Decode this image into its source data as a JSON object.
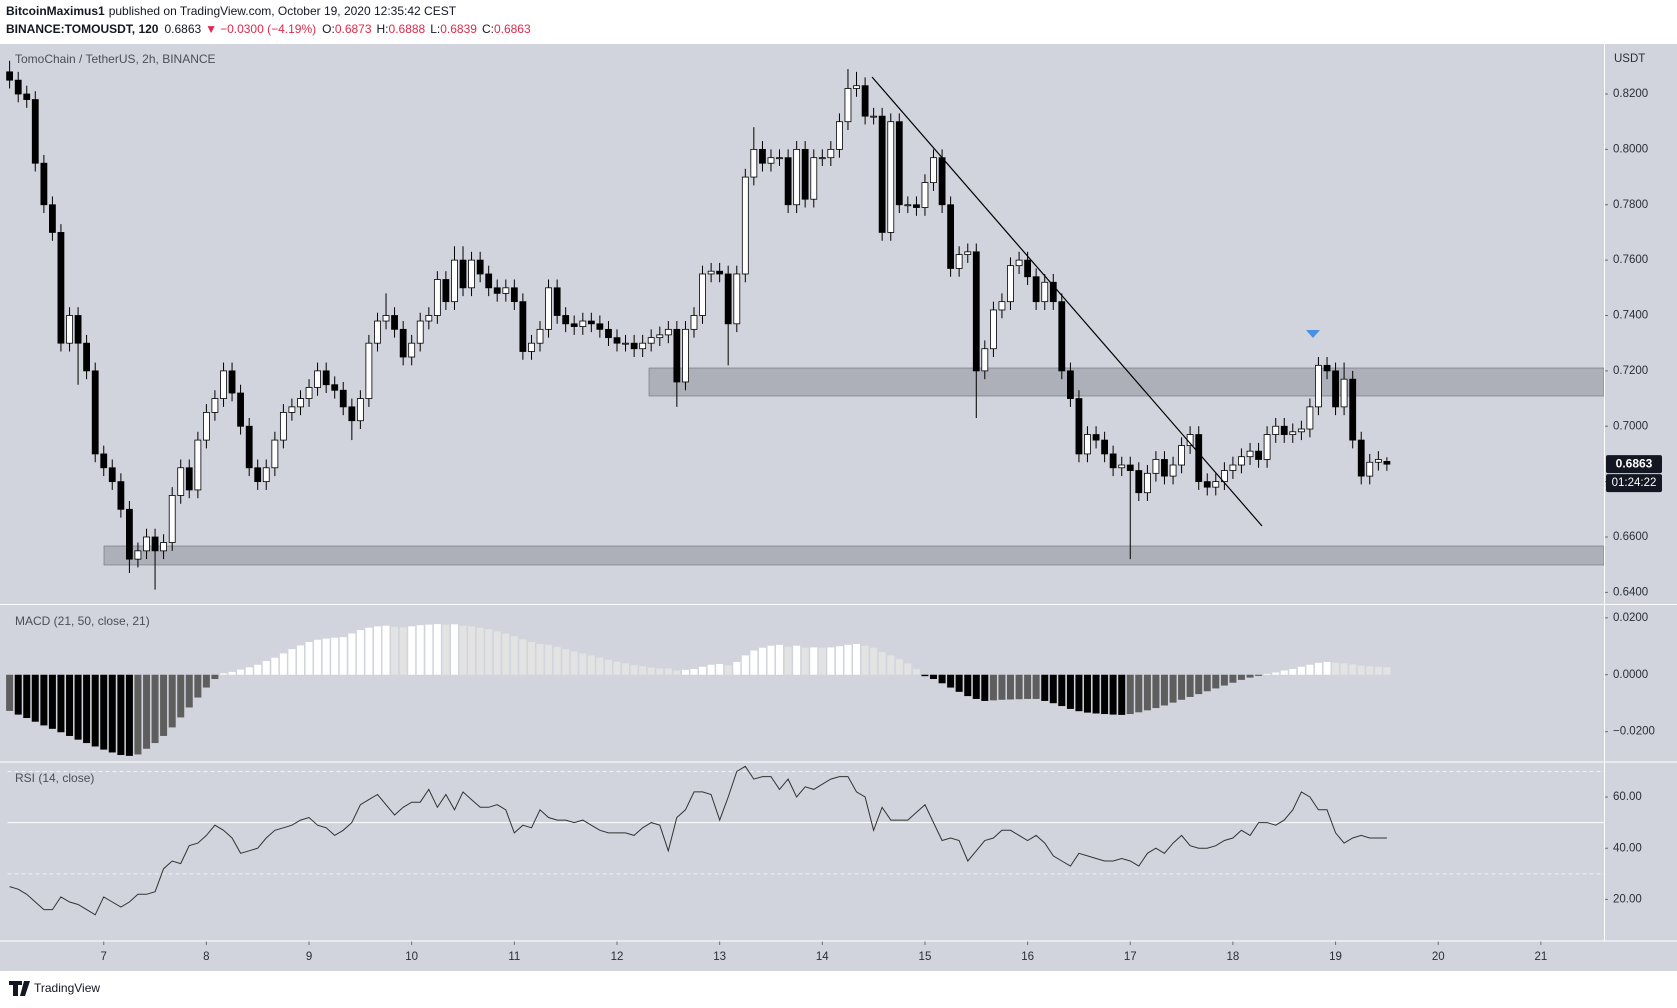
{
  "header": {
    "publisher": "BitcoinMaximus1",
    "published": "published on TradingView.com, October 19, 2020 12:35:42 CEST",
    "symbol": "BINANCE:TOMOUSDT, 120",
    "change_arrow": "▼",
    "change": "−0.0300 (−4.19%)",
    "o_label": "O:",
    "h_label": "H:",
    "l_label": "L:",
    "c_label": "C:"
  },
  "footer": {
    "brand": "TradingView"
  },
  "chart_data": {
    "type": "candlestick",
    "title": "TomoChain / TetherUS, 2h, BINANCE",
    "y_unit": "USDT",
    "countdown": "01:24:22",
    "up_color": "#ffffff",
    "down_color": "#000000",
    "xlim": [
      6.0625,
      21.615
    ],
    "xticks": [
      7,
      8,
      9,
      10,
      11,
      12,
      13,
      14,
      15,
      16,
      17,
      18,
      19,
      20,
      21
    ],
    "ylim": [
      0.6358,
      0.8377
    ],
    "yticks": [
      {
        "value": 0.64,
        "label": "0.6400"
      },
      {
        "value": 0.66,
        "label": "0.6600"
      },
      {
        "value": 0.68,
        "label": "0.6800"
      },
      {
        "value": 0.7,
        "label": "0.7000"
      },
      {
        "value": 0.72,
        "label": "0.7200"
      },
      {
        "value": 0.74,
        "label": "0.7400"
      },
      {
        "value": 0.76,
        "label": "0.7600"
      },
      {
        "value": 0.78,
        "label": "0.7800"
      },
      {
        "value": 0.8,
        "label": "0.8000"
      },
      {
        "value": 0.82,
        "label": "0.8200"
      }
    ],
    "x": [
      6.083,
      6.167,
      6.25,
      6.333,
      6.417,
      6.5,
      6.583,
      6.667,
      6.75,
      6.833,
      6.917,
      7,
      7.083,
      7.167,
      7.25,
      7.333,
      7.417,
      7.5,
      7.583,
      7.667,
      7.75,
      7.833,
      7.917,
      8,
      8.083,
      8.167,
      8.25,
      8.333,
      8.417,
      8.5,
      8.583,
      8.667,
      8.75,
      8.833,
      8.917,
      9,
      9.083,
      9.167,
      9.25,
      9.333,
      9.417,
      9.5,
      9.583,
      9.667,
      9.75,
      9.833,
      9.917,
      10,
      10.083,
      10.167,
      10.25,
      10.333,
      10.417,
      10.5,
      10.583,
      10.667,
      10.75,
      10.833,
      10.917,
      11,
      11.083,
      11.167,
      11.25,
      11.333,
      11.417,
      11.5,
      11.583,
      11.667,
      11.75,
      11.833,
      11.917,
      12,
      12.083,
      12.167,
      12.25,
      12.333,
      12.417,
      12.5,
      12.583,
      12.667,
      12.75,
      12.833,
      12.917,
      13,
      13.083,
      13.167,
      13.25,
      13.333,
      13.417,
      13.5,
      13.583,
      13.667,
      13.75,
      13.833,
      13.917,
      14,
      14.083,
      14.167,
      14.25,
      14.333,
      14.417,
      14.5,
      14.583,
      14.667,
      14.75,
      14.833,
      14.917,
      15,
      15.083,
      15.167,
      15.25,
      15.333,
      15.417,
      15.5,
      15.583,
      15.667,
      15.75,
      15.833,
      15.917,
      16,
      16.083,
      16.167,
      16.25,
      16.333,
      16.417,
      16.5,
      16.583,
      16.667,
      16.75,
      16.833,
      16.917,
      17,
      17.083,
      17.167,
      17.25,
      17.333,
      17.417,
      17.5,
      17.583,
      17.667,
      17.75,
      17.833,
      17.917,
      18,
      18.083,
      18.167,
      18.25,
      18.333,
      18.417,
      18.5,
      18.583,
      18.667,
      18.75,
      18.833,
      18.917,
      19,
      19.083,
      19.167,
      19.25,
      19.333,
      19.417,
      19.5
    ],
    "open": [
      0.828,
      0.825,
      0.82,
      0.818,
      0.795,
      0.78,
      0.77,
      0.73,
      0.74,
      0.73,
      0.72,
      0.69,
      0.685,
      0.68,
      0.67,
      0.652,
      0.655,
      0.66,
      0.655,
      0.658,
      0.675,
      0.685,
      0.677,
      0.695,
      0.705,
      0.71,
      0.72,
      0.712,
      0.7,
      0.685,
      0.68,
      0.685,
      0.695,
      0.705,
      0.707,
      0.71,
      0.714,
      0.72,
      0.715,
      0.713,
      0.707,
      0.702,
      0.71,
      0.73,
      0.738,
      0.74,
      0.735,
      0.725,
      0.73,
      0.738,
      0.74,
      0.753,
      0.745,
      0.76,
      0.75,
      0.76,
      0.755,
      0.75,
      0.748,
      0.75,
      0.745,
      0.727,
      0.73,
      0.735,
      0.75,
      0.74,
      0.737,
      0.736,
      0.738,
      0.737,
      0.735,
      0.732,
      0.73,
      0.73,
      0.728,
      0.73,
      0.732,
      0.733,
      0.735,
      0.716,
      0.735,
      0.74,
      0.755,
      0.756,
      0.755,
      0.737,
      0.755,
      0.79,
      0.8,
      0.795,
      0.797,
      0.797,
      0.78,
      0.8,
      0.782,
      0.797,
      0.797,
      0.8,
      0.81,
      0.822,
      0.823,
      0.812,
      0.812,
      0.77,
      0.81,
      0.78,
      0.78,
      0.779,
      0.788,
      0.797,
      0.78,
      0.757,
      0.762,
      0.763,
      0.72,
      0.728,
      0.742,
      0.745,
      0.758,
      0.76,
      0.754,
      0.745,
      0.752,
      0.745,
      0.72,
      0.71,
      0.69,
      0.697,
      0.695,
      0.69,
      0.685,
      0.686,
      0.684,
      0.676,
      0.683,
      0.688,
      0.682,
      0.686,
      0.693,
      0.697,
      0.68,
      0.678,
      0.68,
      0.684,
      0.686,
      0.689,
      0.691,
      0.688,
      0.697,
      0.7,
      0.697,
      0.698,
      0.699,
      0.707,
      0.722,
      0.72,
      0.707,
      0.717,
      0.695,
      0.682,
      0.687,
      0.6873
    ],
    "high": [
      0.832,
      0.828,
      0.823,
      0.821,
      0.798,
      0.783,
      0.773,
      0.743,
      0.743,
      0.733,
      0.723,
      0.693,
      0.688,
      0.683,
      0.673,
      0.658,
      0.663,
      0.663,
      0.661,
      0.678,
      0.688,
      0.688,
      0.698,
      0.708,
      0.713,
      0.723,
      0.723,
      0.715,
      0.703,
      0.688,
      0.688,
      0.698,
      0.708,
      0.71,
      0.713,
      0.717,
      0.723,
      0.723,
      0.718,
      0.716,
      0.71,
      0.713,
      0.733,
      0.741,
      0.748,
      0.743,
      0.738,
      0.733,
      0.741,
      0.743,
      0.756,
      0.756,
      0.765,
      0.765,
      0.763,
      0.763,
      0.758,
      0.753,
      0.753,
      0.753,
      0.748,
      0.733,
      0.738,
      0.753,
      0.753,
      0.743,
      0.74,
      0.741,
      0.741,
      0.74,
      0.738,
      0.735,
      0.733,
      0.733,
      0.733,
      0.735,
      0.736,
      0.738,
      0.738,
      0.738,
      0.743,
      0.758,
      0.759,
      0.759,
      0.758,
      0.758,
      0.793,
      0.808,
      0.803,
      0.8,
      0.8,
      0.8,
      0.803,
      0.803,
      0.8,
      0.8,
      0.803,
      0.813,
      0.829,
      0.828,
      0.826,
      0.815,
      0.815,
      0.813,
      0.813,
      0.783,
      0.783,
      0.791,
      0.8,
      0.8,
      0.783,
      0.765,
      0.766,
      0.766,
      0.731,
      0.745,
      0.748,
      0.761,
      0.763,
      0.763,
      0.757,
      0.755,
      0.755,
      0.748,
      0.723,
      0.713,
      0.7,
      0.7,
      0.698,
      0.693,
      0.689,
      0.689,
      0.687,
      0.686,
      0.691,
      0.691,
      0.689,
      0.696,
      0.7,
      0.7,
      0.683,
      0.683,
      0.687,
      0.689,
      0.692,
      0.694,
      0.694,
      0.7,
      0.703,
      0.703,
      0.701,
      0.702,
      0.71,
      0.725,
      0.725,
      0.723,
      0.723,
      0.72,
      0.698,
      0.69,
      0.691,
      0.6888
    ],
    "low": [
      0.822,
      0.817,
      0.815,
      0.792,
      0.777,
      0.767,
      0.727,
      0.727,
      0.715,
      0.717,
      0.687,
      0.682,
      0.677,
      0.667,
      0.647,
      0.649,
      0.652,
      0.641,
      0.652,
      0.655,
      0.672,
      0.674,
      0.674,
      0.692,
      0.702,
      0.707,
      0.709,
      0.697,
      0.682,
      0.677,
      0.677,
      0.682,
      0.692,
      0.702,
      0.704,
      0.707,
      0.711,
      0.712,
      0.71,
      0.704,
      0.695,
      0.699,
      0.707,
      0.727,
      0.735,
      0.732,
      0.722,
      0.722,
      0.727,
      0.735,
      0.737,
      0.742,
      0.742,
      0.747,
      0.747,
      0.752,
      0.747,
      0.745,
      0.745,
      0.742,
      0.724,
      0.724,
      0.727,
      0.732,
      0.737,
      0.734,
      0.733,
      0.733,
      0.734,
      0.732,
      0.729,
      0.727,
      0.727,
      0.725,
      0.725,
      0.727,
      0.729,
      0.73,
      0.707,
      0.713,
      0.732,
      0.737,
      0.752,
      0.752,
      0.722,
      0.734,
      0.752,
      0.787,
      0.792,
      0.792,
      0.794,
      0.777,
      0.777,
      0.779,
      0.779,
      0.794,
      0.794,
      0.797,
      0.807,
      0.819,
      0.809,
      0.809,
      0.767,
      0.767,
      0.777,
      0.777,
      0.776,
      0.776,
      0.785,
      0.777,
      0.754,
      0.754,
      0.759,
      0.703,
      0.717,
      0.725,
      0.739,
      0.742,
      0.755,
      0.751,
      0.742,
      0.742,
      0.742,
      0.717,
      0.707,
      0.687,
      0.687,
      0.692,
      0.687,
      0.682,
      0.682,
      0.652,
      0.673,
      0.673,
      0.68,
      0.679,
      0.679,
      0.683,
      0.69,
      0.677,
      0.675,
      0.675,
      0.677,
      0.681,
      0.683,
      0.686,
      0.685,
      0.685,
      0.694,
      0.694,
      0.694,
      0.695,
      0.696,
      0.704,
      0.717,
      0.704,
      0.704,
      0.692,
      0.679,
      0.679,
      0.684,
      0.6839
    ],
    "close": [
      0.825,
      0.82,
      0.818,
      0.795,
      0.78,
      0.77,
      0.73,
      0.74,
      0.73,
      0.72,
      0.69,
      0.685,
      0.68,
      0.67,
      0.652,
      0.655,
      0.66,
      0.655,
      0.658,
      0.675,
      0.685,
      0.677,
      0.695,
      0.705,
      0.71,
      0.72,
      0.712,
      0.7,
      0.685,
      0.68,
      0.685,
      0.695,
      0.705,
      0.707,
      0.71,
      0.714,
      0.72,
      0.715,
      0.713,
      0.707,
      0.702,
      0.71,
      0.73,
      0.738,
      0.74,
      0.735,
      0.725,
      0.73,
      0.738,
      0.74,
      0.753,
      0.745,
      0.76,
      0.75,
      0.76,
      0.755,
      0.75,
      0.748,
      0.75,
      0.745,
      0.727,
      0.73,
      0.735,
      0.75,
      0.74,
      0.737,
      0.736,
      0.738,
      0.737,
      0.735,
      0.732,
      0.73,
      0.73,
      0.728,
      0.73,
      0.732,
      0.733,
      0.735,
      0.716,
      0.735,
      0.74,
      0.755,
      0.756,
      0.755,
      0.737,
      0.755,
      0.79,
      0.8,
      0.795,
      0.797,
      0.797,
      0.78,
      0.8,
      0.782,
      0.797,
      0.797,
      0.8,
      0.81,
      0.822,
      0.823,
      0.812,
      0.812,
      0.77,
      0.81,
      0.78,
      0.78,
      0.779,
      0.788,
      0.797,
      0.78,
      0.757,
      0.762,
      0.763,
      0.72,
      0.728,
      0.742,
      0.745,
      0.758,
      0.76,
      0.754,
      0.745,
      0.752,
      0.745,
      0.72,
      0.71,
      0.69,
      0.697,
      0.695,
      0.69,
      0.685,
      0.686,
      0.684,
      0.676,
      0.683,
      0.688,
      0.682,
      0.686,
      0.693,
      0.697,
      0.68,
      0.678,
      0.68,
      0.684,
      0.686,
      0.689,
      0.691,
      0.688,
      0.697,
      0.7,
      0.697,
      0.698,
      0.699,
      0.707,
      0.722,
      0.72,
      0.707,
      0.717,
      0.695,
      0.682,
      0.687,
      0.688,
      0.6863
    ],
    "indicators": [
      {
        "type": "bar",
        "title": "MACD (21, 50, close, 21)",
        "ylim": [
          -0.0303,
          0.0245
        ],
        "yticks": [
          {
            "value": 0.02,
            "label": "0.0200"
          },
          {
            "value": 0,
            "label": "0.0000"
          },
          {
            "value": -0.02,
            "label": "−0.0200"
          }
        ],
        "colors": {
          "neg_grow": "#000000",
          "neg_fall": "#5e5e5e",
          "pos_grow": "#ffffff",
          "pos_fall": "#e3e3e3"
        },
        "values": [
          -0.0127,
          -0.014,
          -0.0152,
          -0.0165,
          -0.0178,
          -0.019,
          -0.0202,
          -0.0215,
          -0.0228,
          -0.024,
          -0.0252,
          -0.0263,
          -0.0273,
          -0.0282,
          -0.0285,
          -0.028,
          -0.026,
          -0.024,
          -0.0215,
          -0.0185,
          -0.015,
          -0.0115,
          -0.008,
          -0.0045,
          -0.0015,
          0.0005,
          0.001,
          0.0018,
          0.0026,
          0.0035,
          0.0048,
          0.006,
          0.0075,
          0.009,
          0.0103,
          0.0115,
          0.0123,
          0.0127,
          0.013,
          0.0132,
          0.0145,
          0.0157,
          0.0165,
          0.017,
          0.0172,
          0.0168,
          0.0166,
          0.017,
          0.0174,
          0.0176,
          0.0178,
          0.0176,
          0.0177,
          0.0172,
          0.017,
          0.0165,
          0.016,
          0.0152,
          0.0145,
          0.0136,
          0.0125,
          0.0115,
          0.0108,
          0.0105,
          0.0098,
          0.009,
          0.0082,
          0.0075,
          0.0068,
          0.006,
          0.0053,
          0.0046,
          0.004,
          0.0034,
          0.003,
          0.0025,
          0.0022,
          0.0022,
          0.0015,
          0.0017,
          0.002,
          0.0028,
          0.0035,
          0.0038,
          0.0033,
          0.0045,
          0.0068,
          0.0085,
          0.0095,
          0.0102,
          0.0105,
          0.0098,
          0.0102,
          0.0095,
          0.0096,
          0.0095,
          0.0096,
          0.01,
          0.0105,
          0.0108,
          0.0102,
          0.0095,
          0.008,
          0.0068,
          0.0055,
          0.004,
          0.002,
          -0.0005,
          -0.0015,
          -0.003,
          -0.0045,
          -0.006,
          -0.0075,
          -0.0085,
          -0.0092,
          -0.009,
          -0.0088,
          -0.0087,
          -0.0086,
          -0.0085,
          -0.0085,
          -0.0092,
          -0.01,
          -0.011,
          -0.012,
          -0.0128,
          -0.0133,
          -0.0136,
          -0.0138,
          -0.014,
          -0.0141,
          -0.0138,
          -0.0132,
          -0.0125,
          -0.0117,
          -0.0108,
          -0.0098,
          -0.0088,
          -0.0078,
          -0.0068,
          -0.0058,
          -0.0048,
          -0.0038,
          -0.0028,
          -0.0018,
          -0.001,
          -0.0004,
          0.0003,
          0.0008,
          0.0015,
          0.002,
          0.0028,
          0.0035,
          0.0042,
          0.0045,
          0.0042,
          0.004,
          0.0036,
          0.0032,
          0.003,
          0.0028,
          0.0026
        ]
      },
      {
        "type": "line",
        "title": "RSI (14, close)",
        "ylim": [
          3.75,
          73.3
        ],
        "color": "#333333",
        "levels": [
          70,
          50,
          30
        ],
        "yticks": [
          {
            "value": 60,
            "label": "60.00"
          },
          {
            "value": 40,
            "label": "40.00"
          },
          {
            "value": 20,
            "label": "20.00"
          }
        ],
        "values": [
          25,
          24,
          22,
          19,
          16,
          16,
          21,
          19,
          18,
          16,
          14,
          21,
          19,
          17,
          19,
          22,
          22,
          23,
          32,
          35,
          34,
          41,
          42,
          45,
          49,
          47,
          44,
          38,
          39,
          40,
          44,
          47,
          48,
          49,
          51,
          52,
          49,
          48,
          45,
          47,
          50,
          57,
          59,
          61,
          57,
          53,
          56,
          58,
          58,
          63,
          56,
          61,
          55,
          62,
          59,
          56,
          56,
          57,
          55,
          46,
          49,
          48,
          55,
          52,
          51,
          51,
          50,
          51,
          49,
          47,
          46,
          46,
          46,
          45,
          48,
          50,
          49,
          39,
          52,
          55,
          62,
          62,
          61,
          51,
          60,
          70,
          72,
          67,
          68,
          68,
          63,
          67,
          60,
          64,
          63,
          65,
          67,
          68,
          68,
          62,
          60,
          47,
          56,
          51,
          51,
          51,
          54,
          57,
          50,
          43,
          44,
          43,
          35,
          39,
          43,
          44,
          47,
          47,
          45,
          43,
          45,
          42,
          37,
          35,
          33,
          38,
          37,
          36,
          35,
          35,
          36,
          35,
          33,
          38,
          40,
          38,
          42,
          45,
          41,
          40,
          40,
          41,
          43,
          44,
          47,
          45,
          50,
          50,
          49,
          51,
          55,
          62,
          60,
          55,
          55,
          46,
          42,
          44,
          45,
          44,
          44,
          44
        ]
      }
    ]
  }
}
